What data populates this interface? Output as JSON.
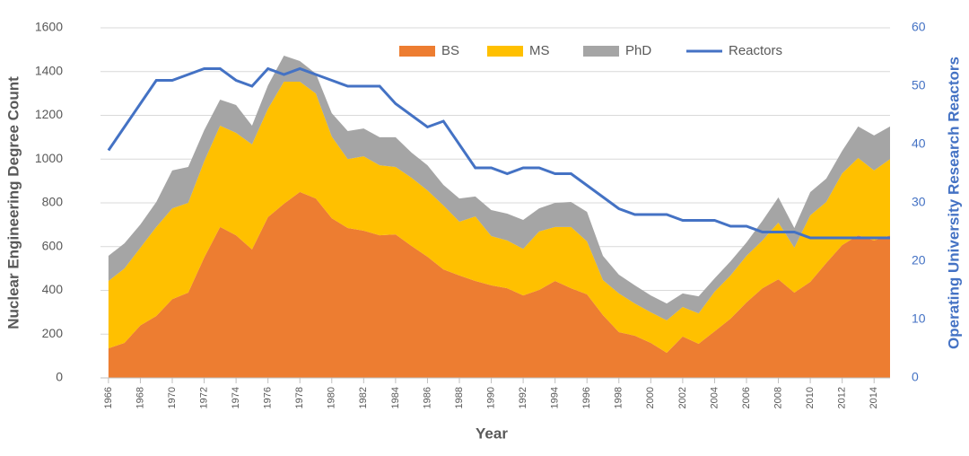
{
  "chart_data": {
    "type": "stacked-area-line",
    "x_label": "Year",
    "y_label": "Nuclear Engineering Degree Count",
    "y2_label": "Operating University Research Reactors",
    "x": [
      1966,
      1967,
      1968,
      1969,
      1970,
      1971,
      1972,
      1973,
      1974,
      1975,
      1976,
      1977,
      1978,
      1979,
      1980,
      1981,
      1982,
      1983,
      1984,
      1985,
      1986,
      1987,
      1988,
      1989,
      1990,
      1991,
      1992,
      1993,
      1994,
      1995,
      1996,
      1997,
      1998,
      1999,
      2000,
      2001,
      2002,
      2003,
      2004,
      2005,
      2006,
      2007,
      2008,
      2009,
      2010,
      2011,
      2012,
      2013,
      2014,
      2015
    ],
    "series": [
      {
        "name": "BS",
        "color": "#ed7d31",
        "kind": "area",
        "values": [
          135,
          160,
          240,
          283,
          360,
          390,
          550,
          690,
          652,
          587,
          735,
          796,
          850,
          820,
          730,
          685,
          673,
          652,
          656,
          603,
          554,
          496,
          468,
          443,
          423,
          410,
          377,
          402,
          443,
          410,
          382,
          287,
          209,
          193,
          160,
          115,
          189,
          156,
          213,
          271,
          345,
          410,
          451,
          390,
          439,
          525,
          607,
          652,
          628,
          652
        ]
      },
      {
        "name": "MS",
        "color": "#ffc000",
        "kind": "area",
        "values": [
          308,
          340,
          355,
          407,
          415,
          410,
          440,
          463,
          468,
          480,
          495,
          558,
          504,
          480,
          373,
          315,
          340,
          320,
          308,
          312,
          303,
          292,
          246,
          295,
          225,
          218,
          213,
          267,
          247,
          280,
          242,
          160,
          177,
          147,
          140,
          148,
          135,
          139,
          181,
          197,
          213,
          218,
          259,
          205,
          304,
          279,
          328,
          353,
          320,
          348
        ]
      },
      {
        "name": "PhD",
        "color": "#a5a5a5",
        "kind": "area",
        "values": [
          115,
          115,
          106,
          114,
          173,
          164,
          142,
          119,
          127,
          86,
          107,
          119,
          94,
          91,
          107,
          128,
          127,
          128,
          136,
          115,
          115,
          94,
          106,
          91,
          119,
          123,
          132,
          106,
          110,
          114,
          135,
          111,
          86,
          83,
          77,
          77,
          62,
          78,
          61,
          65,
          61,
          90,
          115,
          90,
          106,
          107,
          103,
          144,
          160,
          149
        ]
      },
      {
        "name": "Reactors",
        "color": "#4472c4",
        "kind": "line",
        "axis": "y2",
        "values": [
          39,
          43,
          47,
          51,
          51,
          52,
          53,
          53,
          51,
          50,
          53,
          52,
          53,
          52,
          51,
          50,
          50,
          50,
          47,
          45,
          43,
          44,
          40,
          36,
          36,
          35,
          36,
          36,
          35,
          35,
          33,
          31,
          29,
          28,
          28,
          28,
          27,
          27,
          27,
          26,
          26,
          25,
          25,
          25,
          24,
          24,
          24,
          24,
          24,
          24
        ]
      }
    ],
    "xlim": [
      1965.5,
      2015
    ],
    "xticks": [
      1966,
      1968,
      1970,
      1972,
      1974,
      1976,
      1978,
      1980,
      1982,
      1984,
      1986,
      1988,
      1990,
      1992,
      1994,
      1996,
      1998,
      2000,
      2002,
      2004,
      2006,
      2008,
      2010,
      2012,
      2014
    ],
    "ylim": [
      0,
      1600
    ],
    "yticks": [
      0,
      200,
      400,
      600,
      800,
      1000,
      1200,
      1400,
      1600
    ],
    "y2lim": [
      0,
      60
    ],
    "y2ticks": [
      0,
      10,
      20,
      30,
      40,
      50,
      60
    ],
    "grid": true,
    "legend": "top"
  }
}
